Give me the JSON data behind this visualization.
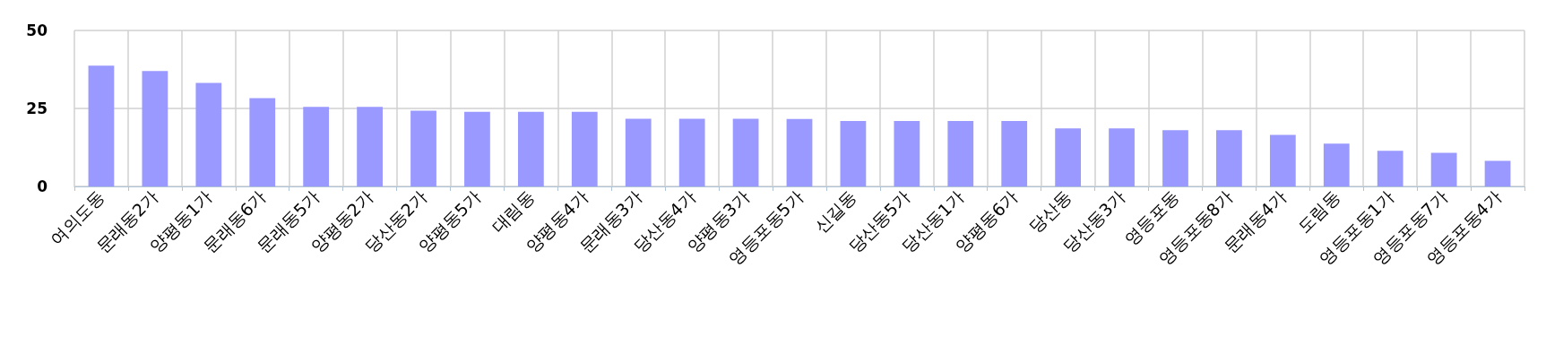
{
  "chart_data": {
    "type": "bar",
    "categories": [
      "여의도동",
      "문래동2가",
      "양평동1가",
      "문래동6가",
      "문래동5가",
      "양평동2가",
      "당산동2가",
      "양평동5가",
      "대림동",
      "양평동4가",
      "문래동3가",
      "당산동4가",
      "양평동3가",
      "영등포동5가",
      "신길동",
      "당산동5가",
      "당산동1가",
      "양평동6가",
      "당산동",
      "당산동3가",
      "영등포동",
      "영등포동8가",
      "문래동4가",
      "도림동",
      "영등포동1가",
      "영등포동7가",
      "영등포동4가"
    ],
    "values": [
      38.7,
      37.0,
      33.2,
      28.3,
      25.5,
      25.5,
      24.3,
      23.9,
      23.9,
      23.9,
      21.7,
      21.7,
      21.7,
      21.6,
      21.0,
      21.0,
      21.0,
      21.0,
      18.6,
      18.6,
      18.0,
      18.0,
      16.5,
      13.7,
      11.4,
      10.8,
      8.2
    ],
    "color": "#9999ff",
    "ylim": [
      0,
      50
    ],
    "yticks": [
      0,
      25,
      50
    ],
    "grid": true
  }
}
